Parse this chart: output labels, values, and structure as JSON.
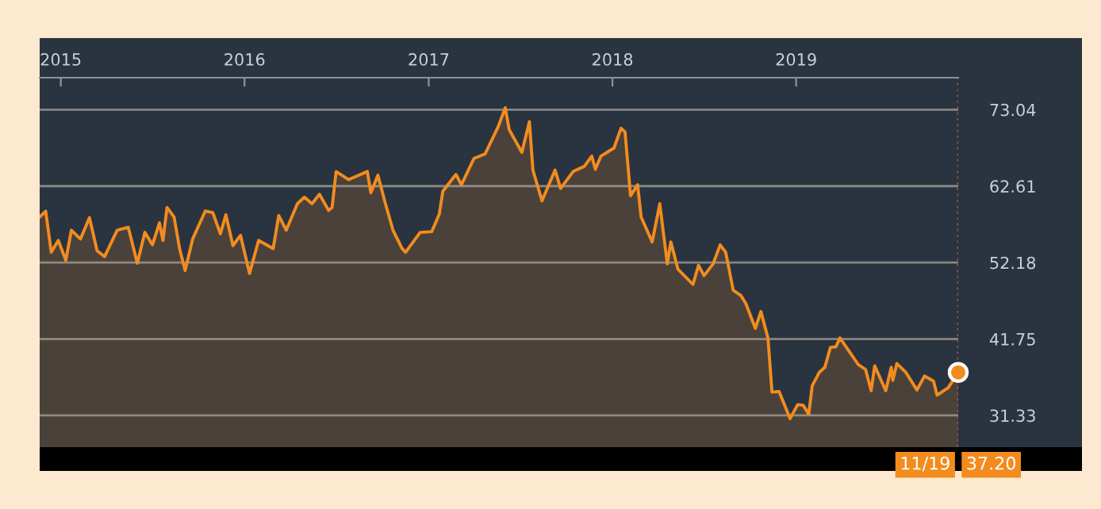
{
  "chart_data": {
    "type": "area",
    "x": [
      "2014-11-20",
      "2014-12-02",
      "2014-12-13",
      "2014-12-27",
      "2015-01-11",
      "2015-01-22",
      "2015-02-09",
      "2015-02-27",
      "2015-03-14",
      "2015-03-29",
      "2015-04-23",
      "2015-05-15",
      "2015-06-02",
      "2015-06-17",
      "2015-07-02",
      "2015-07-16",
      "2015-07-23",
      "2015-07-31",
      "2015-08-14",
      "2015-08-25",
      "2015-09-05",
      "2015-09-20",
      "2015-10-15",
      "2015-10-30",
      "2015-11-14",
      "2015-11-25",
      "2015-12-09",
      "2015-12-24",
      "2016-01-11",
      "2016-01-29",
      "2016-02-27",
      "2016-03-09",
      "2016-03-24",
      "2016-04-15",
      "2016-04-29",
      "2016-05-14",
      "2016-05-29",
      "2016-06-16",
      "2016-06-23",
      "2016-07-01",
      "2016-07-26",
      "2016-09-01",
      "2016-09-08",
      "2016-09-22",
      "2016-10-07",
      "2016-10-22",
      "2016-11-09",
      "2016-11-16",
      "2016-12-15",
      "2017-01-07",
      "2017-01-22",
      "2017-01-29",
      "2017-02-24",
      "2017-03-07",
      "2017-04-01",
      "2017-04-23",
      "2017-05-19",
      "2017-06-02",
      "2017-06-10",
      "2017-07-05",
      "2017-07-20",
      "2017-07-27",
      "2017-08-14",
      "2017-09-09",
      "2017-09-20",
      "2017-10-15",
      "2017-11-06",
      "2017-11-21",
      "2017-11-28",
      "2017-12-09",
      "2018-01-04",
      "2018-01-18",
      "2018-01-26",
      "2018-02-06",
      "2018-02-20",
      "2018-02-27",
      "2018-03-21",
      "2018-04-05",
      "2018-04-20",
      "2018-04-27",
      "2018-05-11",
      "2018-06-10",
      "2018-06-21",
      "2018-07-02",
      "2018-07-20",
      "2018-08-03",
      "2018-08-14",
      "2018-08-29",
      "2018-09-13",
      "2018-09-23",
      "2018-10-12",
      "2018-10-23",
      "2018-11-06",
      "2018-11-14",
      "2018-11-28",
      "2018-12-20",
      "2019-01-04",
      "2019-01-15",
      "2019-01-26",
      "2019-02-02",
      "2019-02-16",
      "2019-02-27",
      "2019-03-10",
      "2019-03-21",
      "2019-03-29",
      "2019-04-12",
      "2019-05-04",
      "2019-05-19",
      "2019-05-30",
      "2019-06-06",
      "2019-06-28",
      "2019-07-09",
      "2019-07-12",
      "2019-07-20",
      "2019-08-07",
      "2019-08-29",
      "2019-09-13",
      "2019-10-01",
      "2019-10-08",
      "2019-10-30",
      "2019-11-19"
    ],
    "series": [
      {
        "color": "#f28c1e",
        "values": [
          58.4,
          59.2,
          53.6,
          55.2,
          52.5,
          56.6,
          55.4,
          58.3,
          53.8,
          53.0,
          56.6,
          57.0,
          52.1,
          56.3,
          54.6,
          57.6,
          55.2,
          59.7,
          58.4,
          54.1,
          51.1,
          55.4,
          59.2,
          59.0,
          56.1,
          58.7,
          54.5,
          55.9,
          50.7,
          55.2,
          54.1,
          58.6,
          56.6,
          60.2,
          61.1,
          60.2,
          61.5,
          59.3,
          59.7,
          64.6,
          63.5,
          64.6,
          61.7,
          64.1,
          60.2,
          56.6,
          54.1,
          53.6,
          56.3,
          56.4,
          58.8,
          61.9,
          64.2,
          62.8,
          66.4,
          67.0,
          70.7,
          73.3,
          70.3,
          67.2,
          71.4,
          64.8,
          60.6,
          64.8,
          62.3,
          64.6,
          65.3,
          66.7,
          64.9,
          66.7,
          67.8,
          70.5,
          70.0,
          61.3,
          62.8,
          58.4,
          55.0,
          60.2,
          52.0,
          55.0,
          51.3,
          49.2,
          51.8,
          50.4,
          52.0,
          54.6,
          53.6,
          48.4,
          47.7,
          46.6,
          43.2,
          45.5,
          41.9,
          34.5,
          34.6,
          30.9,
          32.8,
          32.7,
          31.5,
          35.4,
          37.2,
          37.9,
          40.6,
          40.7,
          41.9,
          40.5,
          38.3,
          37.6,
          34.7,
          38.1,
          34.7,
          37.9,
          36.1,
          38.4,
          37.2,
          34.8,
          36.7,
          36.0,
          34.1,
          35.1,
          37.2
        ]
      }
    ],
    "xlim": [
      "2014-11-20",
      "2019-11-19"
    ],
    "xticks": [
      {
        "value": "2015-01-01",
        "label": "2015"
      },
      {
        "value": "2016-01-01",
        "label": "2016"
      },
      {
        "value": "2017-01-01",
        "label": "2017"
      },
      {
        "value": "2018-01-01",
        "label": "2018"
      },
      {
        "value": "2019-01-01",
        "label": "2019"
      }
    ],
    "ylim": [
      27.0,
      77.4
    ],
    "yticks": [
      31.33,
      41.75,
      52.18,
      62.61,
      73.04
    ],
    "grid": "y",
    "ref_lines": [
      {
        "axis": "x",
        "value": "2019-11-19",
        "line_style": "dotted",
        "color": "#a0603a"
      }
    ],
    "annotations": [
      "11/19",
      "37.20"
    ]
  }
}
